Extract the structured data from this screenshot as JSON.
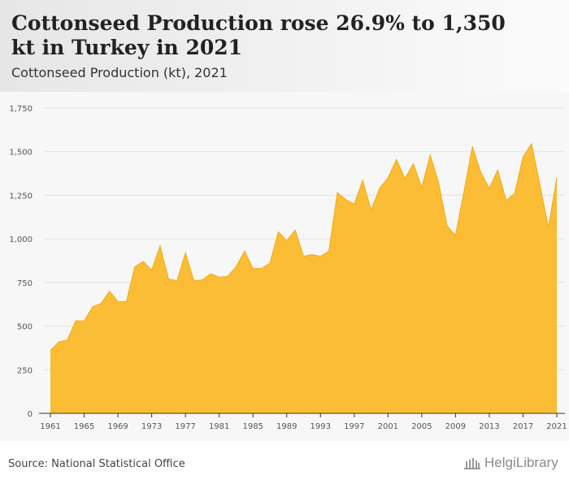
{
  "header": {
    "title": "Cottonseed Production rose 26.9% to 1,350 kt in Turkey in 2021",
    "subtitle": "Cottonseed Production (kt), 2021"
  },
  "footer": {
    "source": "Source: National Statistical Office",
    "logo_text": "HelgiLibrary"
  },
  "colors": {
    "fill": "#fbbd35",
    "stroke": "#f1ab14",
    "grid": "#e3e3e3",
    "axis": "#555555"
  },
  "chart_data": {
    "type": "area",
    "title": "Cottonseed Production (kt), 2021",
    "xlabel": "",
    "ylabel": "",
    "ylim": [
      0,
      1750
    ],
    "yticks": [
      0,
      250,
      500,
      750,
      1000,
      1250,
      1500,
      1750
    ],
    "ytick_labels": [
      "0",
      "250",
      "500",
      "750",
      "1,000",
      "1,250",
      "1,500",
      "1,750"
    ],
    "xticks": [
      1961,
      1965,
      1969,
      1973,
      1977,
      1981,
      1985,
      1989,
      1993,
      1997,
      2001,
      2005,
      2009,
      2013,
      2017,
      2021
    ],
    "grid": true,
    "x": [
      1961,
      1962,
      1963,
      1964,
      1965,
      1966,
      1967,
      1968,
      1969,
      1970,
      1971,
      1972,
      1973,
      1974,
      1975,
      1976,
      1977,
      1978,
      1979,
      1980,
      1981,
      1982,
      1983,
      1984,
      1985,
      1986,
      1987,
      1988,
      1989,
      1990,
      1991,
      1992,
      1993,
      1994,
      1995,
      1996,
      1997,
      1998,
      1999,
      2000,
      2001,
      2002,
      2003,
      2004,
      2005,
      2006,
      2007,
      2008,
      2009,
      2010,
      2011,
      2012,
      2013,
      2014,
      2015,
      2016,
      2017,
      2018,
      2019,
      2020,
      2021
    ],
    "series": [
      {
        "values": [
          360,
          410,
          420,
          530,
          530,
          610,
          630,
          700,
          640,
          640,
          840,
          870,
          820,
          960,
          770,
          760,
          920,
          760,
          765,
          800,
          780,
          785,
          840,
          930,
          830,
          830,
          860,
          1040,
          990,
          1050,
          900,
          910,
          900,
          930,
          1265,
          1225,
          1200,
          1335,
          1165,
          1290,
          1350,
          1455,
          1345,
          1430,
          1295,
          1480,
          1320,
          1075,
          1020,
          1270,
          1530,
          1380,
          1290,
          1395,
          1220,
          1260,
          1470,
          1545,
          1310,
          1065,
          1350
        ]
      }
    ]
  }
}
